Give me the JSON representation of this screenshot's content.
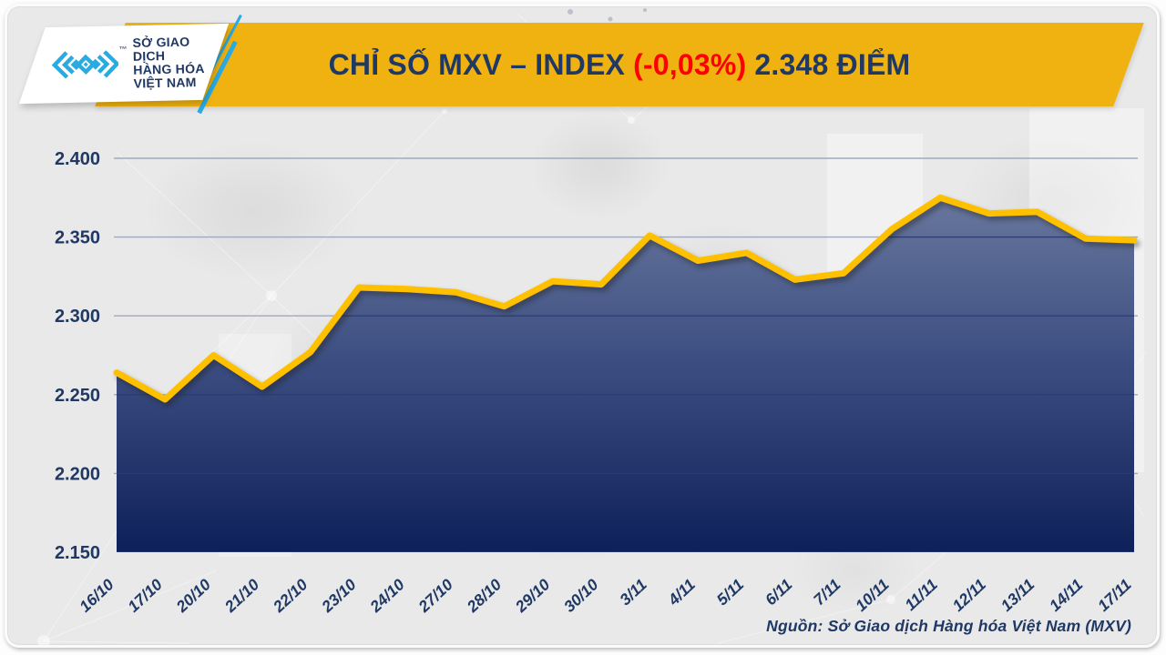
{
  "header": {
    "logo": {
      "mark": "mxv-chevron-logo",
      "trademark": "™",
      "lines": [
        "SỞ GIAO DỊCH",
        "HÀNG HÓA",
        "VIỆT NAM"
      ]
    },
    "title": {
      "main": "CHỈ SỐ MXV – INDEX",
      "change": "(-0,03%)",
      "value": "2.348 ĐIỂM"
    }
  },
  "footer": {
    "source": "Nguồn: Sở Giao dịch Hàng hóa Việt Nam (MXV)"
  },
  "colors": {
    "banner_gold": "#F0B211",
    "title_navy": "#1F3864",
    "change_red": "#FF0000",
    "line_gold": "#FFC000",
    "area_top": "#68779D",
    "area_mid": "#3D4F82",
    "area_bottom": "#0E2059",
    "axis_label": "#1F3864",
    "gridline_light": "#98A3BA",
    "gridline_dark": "#2B3C74",
    "logo_cyan": "#29ABE2",
    "background": "#E9E9EA"
  },
  "chart_data": {
    "type": "area",
    "title": "CHỈ SỐ MXV – INDEX (-0,03%) 2.348 ĐIỂM",
    "unit": "điểm",
    "categories": [
      "16/10",
      "17/10",
      "20/10",
      "21/10",
      "22/10",
      "23/10",
      "24/10",
      "27/10",
      "28/10",
      "29/10",
      "30/10",
      "3/11",
      "4/11",
      "5/11",
      "6/11",
      "7/11",
      "10/11",
      "11/11",
      "12/11",
      "13/11",
      "14/11",
      "17/11"
    ],
    "values": [
      2264,
      2247,
      2275,
      2255,
      2277,
      2318,
      2317,
      2315,
      2306,
      2322,
      2320,
      2351,
      2335,
      2340,
      2323,
      2327,
      2355,
      2375,
      2365,
      2366,
      2349,
      2348
    ],
    "last_value_display": "2.348",
    "change_display": "-0,03%",
    "ylim": [
      2150,
      2400
    ],
    "yticks": [
      2400,
      2350,
      2300,
      2250,
      2200,
      2150
    ],
    "ytick_labels": [
      "2.400",
      "2.350",
      "2.300",
      "2.250",
      "2.200",
      "2.150"
    ],
    "grid": "horizontal",
    "legend": "none"
  }
}
